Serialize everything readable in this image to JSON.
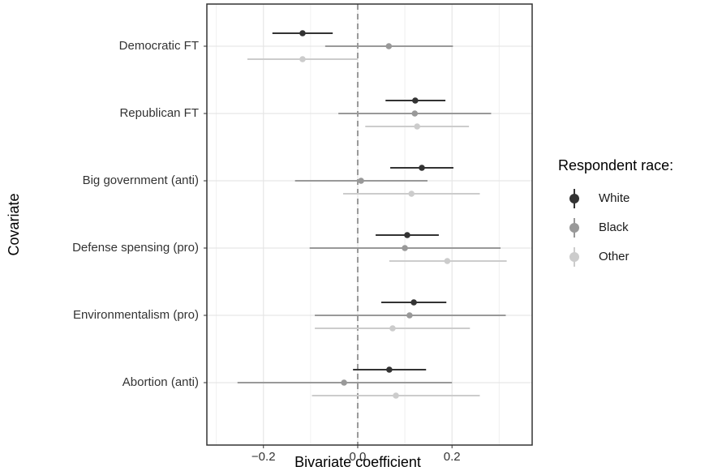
{
  "chart_data": {
    "type": "dot-whisker",
    "xlabel": "Bivariate coefficient",
    "ylabel": "Covariate",
    "categories": [
      "Democratic FT",
      "Republican FT",
      "Big government (anti)",
      "Defense spensing (pro)",
      "Environmentalism (pro)",
      "Abortion (anti)"
    ],
    "series": [
      {
        "name": "White",
        "color": "#333333",
        "values": [
          -0.117,
          0.122,
          0.136,
          0.105,
          0.119,
          0.067
        ],
        "lower": [
          -0.181,
          0.059,
          0.069,
          0.038,
          0.05,
          -0.01
        ],
        "upper": [
          -0.053,
          0.186,
          0.203,
          0.172,
          0.188,
          0.145
        ]
      },
      {
        "name": "Black",
        "color": "#999999",
        "values": [
          0.066,
          0.121,
          0.007,
          0.1,
          0.11,
          -0.029
        ],
        "lower": [
          -0.069,
          -0.041,
          -0.133,
          -0.102,
          -0.091,
          -0.255
        ],
        "upper": [
          0.202,
          0.283,
          0.148,
          0.303,
          0.314,
          0.2
        ]
      },
      {
        "name": "Other",
        "color": "#cccccc",
        "values": [
          -0.117,
          0.126,
          0.114,
          0.19,
          0.074,
          0.081
        ],
        "lower": [
          -0.234,
          0.016,
          -0.031,
          0.067,
          -0.091,
          -0.097
        ],
        "upper": [
          0,
          0.236,
          0.259,
          0.316,
          0.238,
          0.259
        ]
      }
    ],
    "legend_title": "Respondent race:",
    "legend": "right",
    "xlim": [
      -0.32,
      0.37
    ],
    "xticks": [
      {
        "value": -0.2,
        "label": "−0.2"
      },
      {
        "value": 0,
        "label": "0.0"
      },
      0.2
    ],
    "minor_xticks": [
      -0.3,
      -0.1,
      0.1,
      0.3
    ],
    "reference_line": 0,
    "grid": true
  }
}
